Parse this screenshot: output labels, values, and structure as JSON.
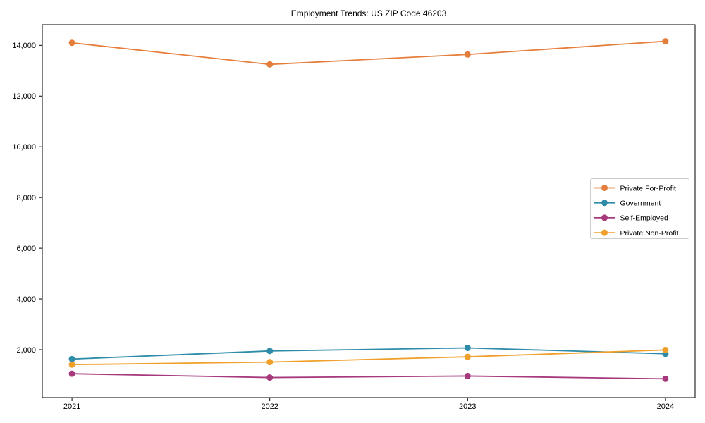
{
  "chart_data": {
    "type": "line",
    "title": "Employment Trends: US ZIP Code 46203",
    "categories": [
      "2021",
      "2022",
      "2023",
      "2024"
    ],
    "series": [
      {
        "name": "Private For-Profit",
        "color": "#e57d3b",
        "values": [
          14100,
          13250,
          13640,
          14160
        ]
      },
      {
        "name": "Government",
        "color": "#2e8ca9",
        "values": [
          1630,
          1950,
          2070,
          1840
        ]
      },
      {
        "name": "Self-Employed",
        "color": "#a63a7d",
        "values": [
          1050,
          900,
          960,
          850
        ]
      },
      {
        "name": "Private Non-Profit",
        "color": "#f0a02a",
        "values": [
          1410,
          1510,
          1720,
          1990
        ]
      }
    ],
    "xlabel": "",
    "ylabel": "",
    "y_ticks": [
      2000,
      4000,
      6000,
      8000,
      10000,
      12000,
      14000
    ],
    "y_tick_labels": [
      "2,000",
      "4,000",
      "6,000",
      "8,000",
      "10,000",
      "12,000",
      "14,000"
    ],
    "ylim": [
      110,
      14815
    ],
    "grid": false,
    "marker": "circle",
    "legend_position": "center-right",
    "legend_entries": [
      "Private For-Profit",
      "Government",
      "Self-Employed",
      "Private Non-Profit"
    ],
    "colors": {
      "spine": "#000000",
      "legend_border": "#cccccc",
      "background": "#ffffff"
    }
  }
}
